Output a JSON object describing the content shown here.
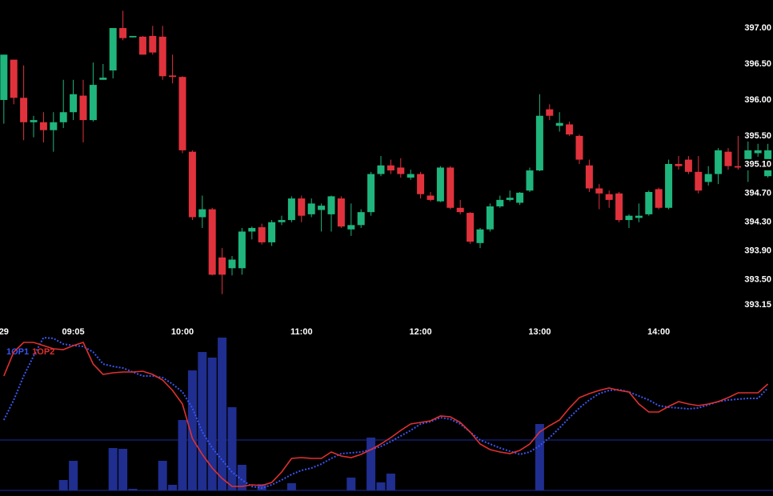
{
  "chart_data": [
    {
      "type": "candlestick",
      "categories": [
        "29",
        null,
        null,
        null,
        null,
        null,
        null,
        "09:05",
        null,
        null,
        null,
        null,
        null,
        null,
        null,
        null,
        null,
        null,
        "10:00",
        null,
        null,
        null,
        null,
        null,
        null,
        null,
        null,
        null,
        null,
        null,
        "11:00",
        null,
        null,
        null,
        null,
        null,
        null,
        null,
        null,
        null,
        null,
        null,
        "12:00",
        null,
        null,
        null,
        null,
        null,
        null,
        null,
        null,
        null,
        null,
        null,
        "13:00",
        null,
        null,
        null,
        null,
        null,
        null,
        null,
        null,
        null,
        null,
        null,
        "14:00",
        null,
        null,
        null,
        null,
        null,
        null,
        null,
        null,
        null,
        null,
        null
      ],
      "open": [
        396.0,
        396.56,
        396.03,
        395.69,
        395.69,
        395.58,
        395.69,
        395.83,
        396.06,
        395.72,
        396.28,
        396.41,
        397.0,
        396.87,
        396.88,
        396.89,
        396.88,
        396.34,
        396.32,
        395.28,
        394.37,
        394.48,
        393.81,
        393.66,
        393.66,
        394.17,
        394.23,
        394.02,
        394.3,
        394.33,
        394.63,
        394.41,
        394.47,
        394.41,
        394.63,
        394.2,
        394.26,
        394.44,
        394.97,
        395.09,
        395.06,
        394.92,
        394.97,
        394.67,
        394.59,
        395.06,
        394.5,
        394.43,
        394.01,
        394.2,
        394.52,
        394.61,
        394.57,
        394.74,
        395.02,
        395.87,
        395.64,
        395.66,
        395.5,
        395.09,
        394.77,
        394.69,
        394.7,
        394.33,
        394.36,
        394.41,
        394.76,
        394.5,
        395.11,
        395.17,
        395.0,
        394.86,
        394.97,
        395.28,
        395.08,
        395.03,
        395.26,
        394.94
      ],
      "high": [
        396.63,
        396.56,
        396.48,
        395.78,
        395.83,
        395.83,
        396.28,
        396.28,
        396.28,
        396.52,
        396.5,
        397.0,
        397.24,
        396.89,
        396.89,
        397.03,
        397.03,
        396.63,
        396.33,
        395.3,
        394.67,
        394.5,
        393.94,
        393.83,
        394.22,
        394.24,
        394.28,
        394.33,
        394.39,
        394.66,
        394.67,
        394.63,
        394.56,
        394.67,
        394.66,
        394.56,
        394.48,
        395.0,
        395.22,
        395.17,
        395.19,
        395.03,
        395.0,
        394.72,
        395.08,
        395.08,
        394.61,
        394.44,
        394.22,
        394.56,
        394.67,
        394.74,
        394.72,
        395.06,
        396.08,
        395.94,
        395.83,
        395.7,
        395.52,
        395.17,
        394.83,
        394.74,
        394.72,
        394.41,
        394.56,
        394.74,
        394.78,
        395.17,
        395.22,
        395.22,
        395.22,
        395.08,
        395.33,
        395.33,
        395.5,
        395.44,
        395.39,
        395.39
      ],
      "low": [
        395.67,
        395.94,
        395.44,
        395.48,
        395.41,
        395.28,
        395.61,
        395.72,
        395.41,
        395.7,
        396.28,
        396.3,
        396.83,
        396.87,
        396.63,
        396.63,
        396.28,
        396.23,
        395.26,
        394.33,
        394.22,
        393.56,
        393.3,
        393.56,
        393.57,
        394.06,
        393.99,
        393.97,
        394.26,
        394.3,
        394.3,
        394.37,
        394.17,
        394.17,
        394.22,
        394.11,
        394.22,
        394.39,
        394.94,
        394.97,
        394.92,
        394.89,
        394.63,
        394.59,
        394.58,
        394.48,
        394.41,
        394.0,
        393.94,
        394.17,
        394.5,
        394.59,
        394.54,
        394.72,
        395.01,
        395.72,
        395.56,
        395.5,
        395.11,
        394.72,
        394.48,
        394.5,
        394.3,
        394.22,
        394.3,
        394.39,
        394.48,
        394.48,
        395.03,
        394.97,
        394.7,
        394.81,
        394.83,
        395.03,
        395.03,
        394.86,
        395.21,
        394.92
      ],
      "close": [
        396.63,
        396.03,
        395.69,
        395.72,
        395.58,
        395.69,
        395.83,
        396.08,
        395.72,
        396.21,
        396.31,
        397.0,
        396.86,
        396.89,
        396.63,
        396.66,
        396.33,
        396.32,
        395.3,
        394.37,
        394.48,
        393.57,
        393.57,
        393.78,
        394.17,
        394.22,
        394.02,
        394.3,
        394.33,
        394.63,
        394.39,
        394.56,
        394.53,
        394.66,
        394.24,
        394.26,
        394.44,
        394.97,
        395.09,
        395.02,
        394.97,
        394.97,
        394.69,
        394.61,
        395.06,
        394.5,
        394.44,
        394.03,
        394.2,
        394.52,
        394.61,
        394.64,
        394.71,
        395.02,
        395.78,
        395.78,
        395.68,
        395.52,
        395.17,
        394.77,
        394.7,
        394.61,
        394.33,
        394.39,
        394.39,
        394.72,
        394.5,
        395.11,
        395.08,
        395.0,
        394.74,
        394.97,
        395.3,
        395.08,
        395.06,
        395.3,
        395.3,
        395.3
      ],
      "up_color": "#1fb57d",
      "down_color": "#e0323c",
      "ylim": [
        392.94,
        397.39
      ],
      "yticks": [
        393.15,
        {
          "value": 393.5,
          "label": "393.50"
        },
        {
          "value": 393.9,
          "label": "393.90"
        },
        {
          "value": 394.3,
          "label": "394.30"
        },
        {
          "value": 394.7,
          "label": "394.70"
        },
        {
          "value": 395.1,
          "label": "395.10"
        },
        {
          "value": 395.5,
          "label": "395.50"
        },
        {
          "value": 396,
          "label": "396.00"
        },
        {
          "value": 396.5,
          "label": "396.50"
        },
        {
          "value": 397,
          "label": "397.00"
        }
      ]
    },
    {
      "type": "indicator",
      "bars": {
        "color": "#1f2e8f",
        "values": [
          0,
          0,
          0,
          0,
          0,
          0,
          13,
          37,
          0,
          0,
          0,
          53,
          52,
          2,
          0,
          0,
          37,
          7,
          88,
          150,
          173,
          166,
          191,
          104,
          32,
          0,
          8,
          0,
          0,
          9,
          0,
          0,
          0,
          0,
          0,
          16,
          0,
          66,
          10,
          21,
          0,
          0,
          0,
          0,
          0,
          0,
          0,
          0,
          0,
          0,
          0,
          0,
          0,
          0,
          83,
          0,
          0,
          0,
          0,
          0,
          0,
          0,
          0,
          0,
          0,
          0,
          0,
          0,
          0,
          0,
          0,
          0,
          0,
          0,
          0,
          0,
          0,
          0
        ]
      },
      "series": [
        {
          "name": "1OP1",
          "color": "#3a55f0",
          "dashed": true,
          "values": [
            88,
            113,
            143,
            168,
            191,
            190,
            183,
            181,
            180,
            173,
            158,
            155,
            153,
            148,
            143,
            143,
            141,
            133,
            123,
            103,
            73,
            53,
            38,
            23,
            13,
            5,
            3,
            7,
            13,
            20,
            25,
            28,
            33,
            40,
            46,
            47,
            48,
            51,
            55,
            61,
            68,
            75,
            83,
            86,
            91,
            89,
            83,
            73,
            63,
            58,
            53,
            49,
            45,
            48,
            56,
            66,
            78,
            91,
            103,
            113,
            121,
            125,
            126,
            123,
            118,
            113,
            106,
            104,
            103,
            102,
            103,
            107,
            111,
            113,
            114,
            115,
            115,
            128
          ]
        },
        {
          "name": "1OP2",
          "color": "#e03030",
          "dashed": false,
          "values": [
            143,
            173,
            185,
            185,
            181,
            177,
            176,
            181,
            185,
            158,
            145,
            147,
            148,
            148,
            149,
            145,
            138,
            125,
            108,
            65,
            45,
            28,
            15,
            5,
            5,
            7,
            6,
            10,
            23,
            40,
            41,
            40,
            40,
            48,
            43,
            41,
            45,
            51,
            58,
            66,
            75,
            83,
            85,
            87,
            93,
            92,
            85,
            73,
            58,
            51,
            48,
            46,
            50,
            58,
            73,
            81,
            88,
            103,
            116,
            121,
            125,
            128,
            125,
            123,
            108,
            98,
            98,
            105,
            111,
            108,
            106,
            108,
            111,
            116,
            122,
            122,
            122,
            133
          ]
        }
      ],
      "ylim": [
        0,
        200
      ],
      "hlines": [
        0,
        63
      ],
      "hline_color": "#1c2a9a"
    }
  ]
}
